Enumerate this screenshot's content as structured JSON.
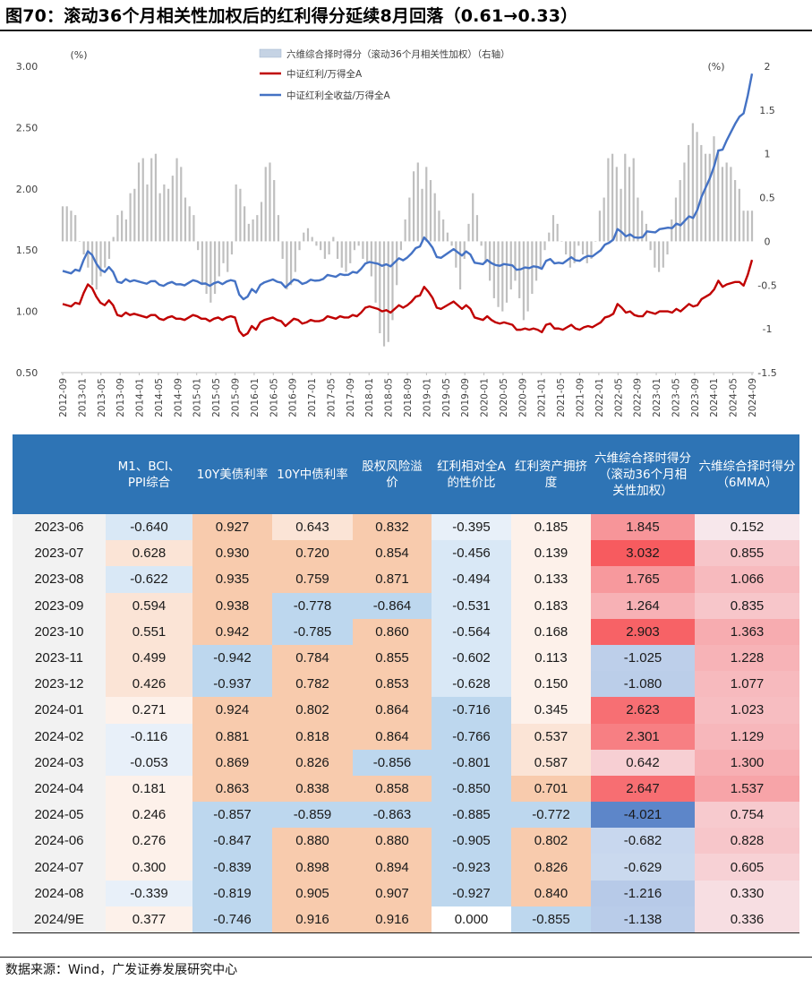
{
  "title": "图70：滚动36个月相关性加权后的红利得分延续8月回落（0.61→0.33）",
  "source": "数据来源：Wind，广发证券发展研究中心",
  "colors": {
    "bars": "#bfbfbf",
    "red_line": "#c00000",
    "blue_line": "#4472c4",
    "header_bg": "#2e74b5"
  },
  "chart_data": {
    "type": "bar+line",
    "left_unit": "(%)",
    "right_unit": "(%)",
    "left_axis": {
      "min": 0.5,
      "max": 3.0,
      "ticks": [
        "0.50",
        "1.00",
        "1.50",
        "2.00",
        "2.50",
        "3.00"
      ]
    },
    "right_axis": {
      "min": -1.5,
      "max": 2.0,
      "ticks": [
        "-1.5",
        "-1",
        "-0.5",
        "0",
        "0.5",
        "1",
        "1.5",
        "2"
      ]
    },
    "x_ticks": [
      "2012-09",
      "2013-01",
      "2013-05",
      "2013-09",
      "2014-01",
      "2014-05",
      "2014-09",
      "2015-01",
      "2015-05",
      "2015-09",
      "2016-01",
      "2016-05",
      "2016-09",
      "2017-01",
      "2017-05",
      "2017-09",
      "2018-01",
      "2018-05",
      "2018-09",
      "2019-01",
      "2019-05",
      "2019-09",
      "2020-01",
      "2020-05",
      "2020-09",
      "2021-01",
      "2021-05",
      "2021-09",
      "2022-01",
      "2022-05",
      "2022-09",
      "2023-01",
      "2023-05",
      "2023-09",
      "2024-01",
      "2024-05",
      "2024-09"
    ],
    "legend": [
      {
        "name": "六维综合择时得分（滚动36个月相关性加权）（右轴）",
        "kind": "bar"
      },
      {
        "name": "中证红利/万得全A",
        "kind": "red"
      },
      {
        "name": "中证红利全收益/万得全A",
        "kind": "blue"
      }
    ],
    "bar_series": [
      0.4,
      0.4,
      0.35,
      0.3,
      0.0,
      -0.15,
      -0.3,
      -0.5,
      -0.55,
      -0.4,
      -0.3,
      -0.2,
      0.05,
      0.3,
      0.35,
      0.25,
      0.55,
      0.6,
      0.9,
      0.95,
      0.65,
      0.95,
      1.0,
      0.55,
      0.65,
      0.6,
      0.75,
      0.95,
      0.85,
      0.5,
      0.4,
      0.3,
      -0.1,
      -0.5,
      -0.6,
      -0.7,
      -0.6,
      -0.4,
      -0.25,
      -0.35,
      -0.15,
      0.65,
      0.6,
      0.4,
      0.2,
      0.25,
      0.3,
      0.45,
      0.85,
      0.9,
      0.7,
      0.3,
      -0.2,
      -0.55,
      -0.5,
      -0.35,
      -0.1,
      0.1,
      0.15,
      0.05,
      -0.05,
      -0.1,
      -0.2,
      -0.15,
      0.05,
      -0.2,
      -0.3,
      -0.35,
      -0.25,
      -0.1,
      -0.05,
      -0.2,
      -0.25,
      -0.4,
      -0.7,
      -1.05,
      -1.2,
      -1.15,
      -0.9,
      -0.5,
      -0.1,
      0.25,
      0.5,
      0.8,
      0.9,
      0.6,
      0.85,
      0.7,
      0.55,
      0.35,
      0.25,
      0.1,
      -0.05,
      -0.3,
      -0.55,
      -0.2,
      0.2,
      0.55,
      0.3,
      -0.05,
      -0.25,
      -0.45,
      -0.65,
      -0.75,
      -0.8,
      -0.7,
      -0.55,
      -0.45,
      -0.65,
      -0.9,
      -0.8,
      -0.6,
      -0.45,
      -0.3,
      -0.1,
      0.1,
      0.3,
      0.2,
      0.0,
      -0.15,
      -0.3,
      -0.25,
      -0.05,
      -0.15,
      -0.25,
      -0.2,
      0.0,
      0.35,
      0.5,
      0.95,
      1.0,
      0.85,
      0.6,
      1.0,
      0.85,
      0.95,
      0.5,
      0.35,
      0.2,
      -0.1,
      -0.3,
      -0.35,
      -0.3,
      -0.15,
      0.25,
      0.5,
      0.7,
      0.9,
      1.1,
      1.35,
      1.25,
      1.1,
      1.0,
      1.0,
      1.2,
      1.05,
      0.85,
      0.9,
      0.85,
      0.7,
      0.6,
      0.35,
      0.35,
      0.35
    ],
    "red_series": [
      1.06,
      1.05,
      1.04,
      1.07,
      1.06,
      1.15,
      1.22,
      1.19,
      1.12,
      1.07,
      1.05,
      1.09,
      1.05,
      0.97,
      0.96,
      0.99,
      0.97,
      0.98,
      0.97,
      0.96,
      0.95,
      0.97,
      0.97,
      0.94,
      0.93,
      0.95,
      0.96,
      0.94,
      0.94,
      0.93,
      0.95,
      0.97,
      0.96,
      0.94,
      0.94,
      0.92,
      0.94,
      0.95,
      0.93,
      0.95,
      0.96,
      0.95,
      0.84,
      0.8,
      0.82,
      0.88,
      0.85,
      0.91,
      0.93,
      0.94,
      0.95,
      0.93,
      0.92,
      0.88,
      0.91,
      0.94,
      0.93,
      0.9,
      0.91,
      0.93,
      0.92,
      0.92,
      0.93,
      0.96,
      0.95,
      0.94,
      0.96,
      0.95,
      0.95,
      0.97,
      0.96,
      0.99,
      1.03,
      1.04,
      1.03,
      1.02,
      1.0,
      1.01,
      0.99,
      1.02,
      1.05,
      1.03,
      1.05,
      1.08,
      1.12,
      1.13,
      1.2,
      1.16,
      1.11,
      1.03,
      1.02,
      1.04,
      1.06,
      1.08,
      1.05,
      1.02,
      1.05,
      1.02,
      0.95,
      0.94,
      0.93,
      0.96,
      0.93,
      0.91,
      0.9,
      0.91,
      0.9,
      0.89,
      0.85,
      0.85,
      0.86,
      0.85,
      0.86,
      0.85,
      0.83,
      0.89,
      0.9,
      0.86,
      0.86,
      0.85,
      0.87,
      0.89,
      0.86,
      0.85,
      0.87,
      0.88,
      0.87,
      0.89,
      0.91,
      0.95,
      0.96,
      0.98,
      1.06,
      1.03,
      0.99,
      1.0,
      0.97,
      0.96,
      0.96,
      1.0,
      0.99,
      0.98,
      1.0,
      1.0,
      1.0,
      0.99,
      1.02,
      1.0,
      1.03,
      1.06,
      1.04,
      1.05,
      1.1,
      1.12,
      1.14,
      1.18,
      1.25,
      1.2,
      1.22,
      1.23,
      1.24,
      1.24,
      1.21,
      1.3,
      1.42
    ]
  },
  "table": {
    "headers": [
      "",
      "M1、BCI、PPI综合",
      "10Y美债利率",
      "10Y中债利率",
      "股权风险溢价",
      "红利相对全A的性价比",
      "红利资产拥挤度",
      "六维综合择时得分（滚动36个月相关性加权）",
      "六维综合择时得分（6MMA）"
    ],
    "rows": [
      {
        "date": "2023-06",
        "values": [
          "-0.640",
          "0.927",
          "0.643",
          "0.832",
          "-0.395",
          "0.185",
          "1.845",
          "0.152"
        ]
      },
      {
        "date": "2023-07",
        "values": [
          "0.628",
          "0.930",
          "0.720",
          "0.854",
          "-0.456",
          "0.139",
          "3.032",
          "0.855"
        ]
      },
      {
        "date": "2023-08",
        "values": [
          "-0.622",
          "0.935",
          "0.759",
          "0.871",
          "-0.494",
          "0.133",
          "1.765",
          "1.066"
        ]
      },
      {
        "date": "2023-09",
        "values": [
          "0.594",
          "0.938",
          "-0.778",
          "-0.864",
          "-0.531",
          "0.183",
          "1.264",
          "0.835"
        ]
      },
      {
        "date": "2023-10",
        "values": [
          "0.551",
          "0.942",
          "-0.785",
          "0.860",
          "-0.564",
          "0.168",
          "2.903",
          "1.363"
        ]
      },
      {
        "date": "2023-11",
        "values": [
          "0.499",
          "-0.942",
          "0.784",
          "0.855",
          "-0.602",
          "0.113",
          "-1.025",
          "1.228"
        ]
      },
      {
        "date": "2023-12",
        "values": [
          "0.426",
          "-0.937",
          "0.782",
          "0.853",
          "-0.628",
          "0.150",
          "-1.080",
          "1.077"
        ]
      },
      {
        "date": "2024-01",
        "values": [
          "0.271",
          "0.924",
          "0.802",
          "0.864",
          "-0.716",
          "0.345",
          "2.623",
          "1.023"
        ]
      },
      {
        "date": "2024-02",
        "values": [
          "-0.116",
          "0.881",
          "0.818",
          "0.864",
          "-0.766",
          "0.537",
          "2.301",
          "1.129"
        ]
      },
      {
        "date": "2024-03",
        "values": [
          "-0.053",
          "0.869",
          "0.826",
          "-0.856",
          "-0.801",
          "0.587",
          "0.642",
          "1.300"
        ]
      },
      {
        "date": "2024-04",
        "values": [
          "0.181",
          "0.863",
          "0.838",
          "0.858",
          "-0.850",
          "0.701",
          "2.647",
          "1.537"
        ]
      },
      {
        "date": "2024-05",
        "values": [
          "0.246",
          "-0.857",
          "-0.859",
          "-0.863",
          "-0.885",
          "-0.772",
          "-4.021",
          "0.754"
        ]
      },
      {
        "date": "2024-06",
        "values": [
          "0.276",
          "-0.847",
          "0.880",
          "0.880",
          "-0.905",
          "0.802",
          "-0.682",
          "0.828"
        ]
      },
      {
        "date": "2024-07",
        "values": [
          "0.300",
          "-0.839",
          "0.898",
          "0.894",
          "-0.923",
          "0.826",
          "-0.629",
          "0.605"
        ]
      },
      {
        "date": "2024-08",
        "values": [
          "-0.339",
          "-0.819",
          "0.905",
          "0.907",
          "-0.927",
          "0.840",
          "-1.216",
          "0.330"
        ]
      },
      {
        "date": "2024/9E",
        "values": [
          "0.377",
          "-0.746",
          "0.916",
          "0.916",
          "0.000",
          "-0.855",
          "-1.138",
          "0.336"
        ]
      }
    ]
  }
}
